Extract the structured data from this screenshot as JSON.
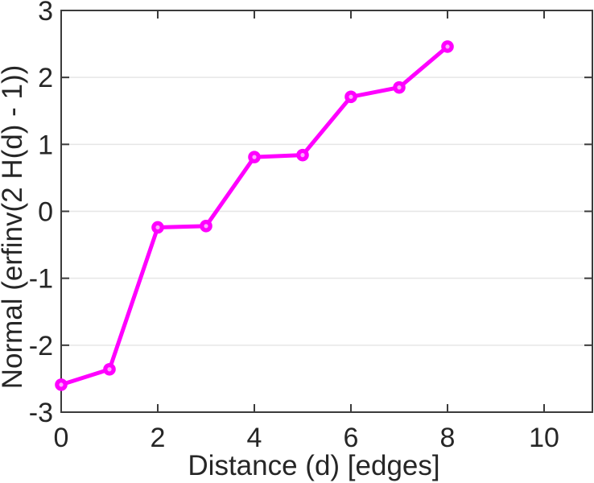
{
  "chart_data": {
    "type": "line",
    "title": "",
    "xlabel": "Distance (d) [edges]",
    "ylabel": "Normal (erfinv(2 H(d) - 1))",
    "x": [
      0,
      1,
      2,
      3,
      4,
      5,
      6,
      7,
      8
    ],
    "y": [
      -2.59,
      -2.36,
      -0.24,
      -0.22,
      0.81,
      0.84,
      1.71,
      1.85,
      2.46
    ],
    "xlim": [
      0,
      11
    ],
    "ylim": [
      -3,
      3
    ],
    "x_ticks": [
      0,
      2,
      4,
      6,
      8,
      10
    ],
    "y_ticks": [
      -3,
      -2,
      -1,
      0,
      1,
      2,
      3
    ],
    "grid": "horizontal-only",
    "legend": "none",
    "marker": "open-circle",
    "colors": {
      "line": "#ff00ff",
      "marker_stroke": "#ff00ff",
      "marker_center": "#ffa6ff",
      "axis": "#3b3b3b",
      "grid": "#e6e6e6",
      "text": "#262626",
      "background": "#ffffff"
    }
  }
}
